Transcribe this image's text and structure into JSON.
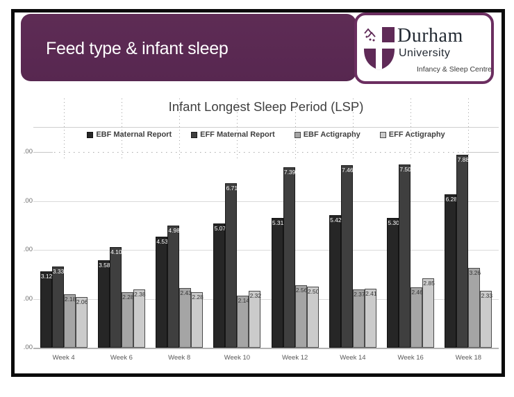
{
  "slide": {
    "title": "Feed type & infant sleep",
    "accent_purple": "#5b2a52"
  },
  "logo": {
    "institution_line1": "Durham",
    "institution_line2": "University",
    "subtitle": "Infancy & Sleep Centre",
    "border_purple": "#6b2e60"
  },
  "y_axis_labels": [
    ".00",
    ".00",
    ".00",
    ".00",
    ".00"
  ],
  "chart_data": {
    "type": "bar",
    "title": "Infant Longest Sleep Period (LSP)",
    "categories": [
      "Week 4",
      "Week 6",
      "Week 8",
      "Week 10",
      "Week 12",
      "Week 14",
      "Week 16",
      "Week 18"
    ],
    "series": [
      {
        "name": "EBF  Maternal Report",
        "color": "#262626",
        "border": "#111111",
        "label_color": "#ffffff",
        "values": [
          3.12,
          3.58,
          4.53,
          5.07,
          5.31,
          5.42,
          5.3,
          6.28
        ],
        "labels": [
          "3.12",
          "3.58",
          "4.53",
          "5.07",
          "5.31",
          "5.42",
          "5.30",
          "6.28"
        ]
      },
      {
        "name": "EFF Maternal Report",
        "color": "#3f3f3f",
        "border": "#191919",
        "label_color": "#ffffff",
        "values": [
          3.33,
          4.1,
          4.98,
          6.71,
          7.39,
          7.46,
          7.5,
          7.88
        ],
        "labels": [
          "3.33",
          "4.10",
          "4.98",
          "6.71",
          "7.39",
          "7.46",
          "7.50",
          "7.88"
        ]
      },
      {
        "name": "EBF Actigraphy",
        "color": "#a5a5a5",
        "border": "#4a4a4a",
        "label_color": "#333333",
        "values": [
          2.18,
          2.28,
          2.43,
          2.14,
          2.56,
          2.37,
          2.46,
          3.26
        ],
        "labels": [
          "2.18",
          "2.28",
          "2.43",
          "2.14",
          "2.56",
          "2.37",
          "2.46",
          "3.26"
        ]
      },
      {
        "name": "EFF Actigraphy",
        "color": "#cbcbcb",
        "border": "#4a4a4a",
        "label_color": "#333333",
        "values": [
          2.06,
          2.38,
          2.28,
          2.32,
          2.5,
          2.41,
          2.85,
          2.33
        ],
        "labels": [
          "2.06",
          "2.38",
          "2.28",
          "2.32",
          "2.50",
          "2.41",
          "2.85",
          "2.33"
        ]
      }
    ],
    "ylim": [
      0,
      8
    ],
    "ytick_interval": 2,
    "grid": true,
    "legend_position": "top"
  }
}
